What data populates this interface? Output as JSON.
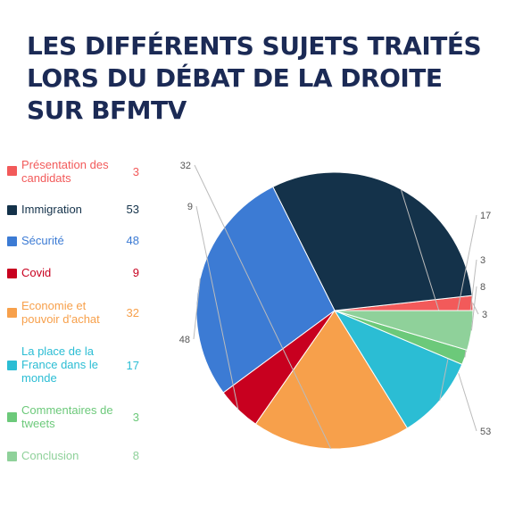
{
  "title_lines": [
    "LES DIFFÉRENTS SUJETS TRAITÉS",
    "LORS DU DÉBAT DE LA DROITE",
    "SUR BFMTV"
  ],
  "chart_data": {
    "type": "pie",
    "title": "LES DIFFÉRENTS SUJETS TRAITÉS LORS DU DÉBAT DE LA DROITE SUR BFMTV",
    "categories": [
      "Présentation des candidats",
      "Immigration",
      "Sécurité",
      "Covid",
      "Economie et pouvoir d'achat",
      "La place de la France dans le monde",
      "Commentaires de tweets",
      "Conclusion"
    ],
    "values": [
      3,
      53,
      48,
      9,
      32,
      17,
      3,
      8
    ],
    "colors": [
      "#f25a5a",
      "#14324a",
      "#3c7bd4",
      "#c8001f",
      "#f7a04b",
      "#2bbdd4",
      "#6cc97a",
      "#8fd19a"
    ],
    "legend_position": "left"
  },
  "legend": [
    {
      "label": "Présentation des candidats",
      "value": "3",
      "color": "#f25a5a"
    },
    {
      "label": "Immigration",
      "value": "53",
      "color": "#14324a"
    },
    {
      "label": "Sécurité",
      "value": "48",
      "color": "#3c7bd4"
    },
    {
      "label": "Covid",
      "value": "9",
      "color": "#c8001f"
    },
    {
      "label": "Economie et pouvoir d'achat",
      "value": "32",
      "color": "#f7a04b"
    },
    {
      "label": "La place de la France dans le monde",
      "value": "17",
      "color": "#2bbdd4"
    },
    {
      "label": "Commentaires de tweets",
      "value": "3",
      "color": "#6cc97a"
    },
    {
      "label": "Conclusion",
      "value": "8",
      "color": "#8fd19a"
    }
  ]
}
